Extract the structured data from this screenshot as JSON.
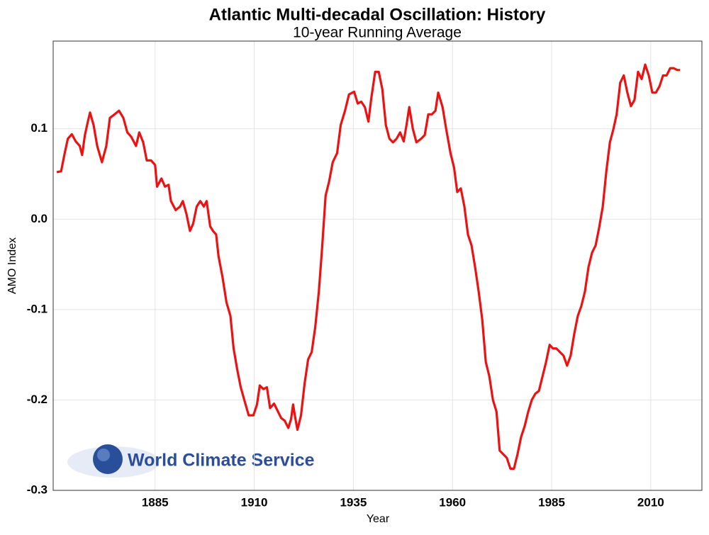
{
  "chart_data": {
    "type": "line",
    "title": "Atlantic Multi-decadal Oscillation: History",
    "subtitle": "10-year Running Average",
    "x_label": "Year",
    "y_label": "AMO Index",
    "logo": "World Climate Service",
    "x": [
      1860.2,
      1861.3,
      1862.3,
      1863,
      1864,
      1865,
      1866,
      1866.6,
      1867.3,
      1868,
      1868.6,
      1869.5,
      1870.4,
      1871.6,
      1872.7,
      1873.6,
      1874.8,
      1875.9,
      1877,
      1878,
      1879,
      1880.2,
      1881,
      1882,
      1882.9,
      1884,
      1885,
      1885.5,
      1886.6,
      1887.5,
      1888.4,
      1889,
      1890.2,
      1891.3,
      1892,
      1892.9,
      1893.8,
      1894.6,
      1895.5,
      1896.4,
      1897.3,
      1898,
      1898.9,
      1899.6,
      1900.4,
      1901,
      1902,
      1903,
      1904,
      1904.8,
      1905.7,
      1906.6,
      1907.5,
      1908.6,
      1909.8,
      1910.7,
      1911.4,
      1912.3,
      1913.2,
      1914,
      1915,
      1915.9,
      1916.8,
      1917.7,
      1918.6,
      1919.3,
      1919.8,
      1920.4,
      1920.9,
      1921.8,
      1922.7,
      1923.6,
      1924.5,
      1925.4,
      1926.3,
      1927.1,
      1928,
      1928.9,
      1929.8,
      1930.9,
      1931.8,
      1932.9,
      1933.9,
      1935.2,
      1936.1,
      1937,
      1937.9,
      1938.8,
      1939.5,
      1940.5,
      1941.4,
      1942.3,
      1943.2,
      1944.1,
      1945,
      1945.9,
      1946.8,
      1947.7,
      1948.4,
      1949.1,
      1950,
      1950.9,
      1952.1,
      1953,
      1953.9,
      1954.8,
      1955.7,
      1956.4,
      1957.5,
      1958.4,
      1959.5,
      1960.4,
      1961.2,
      1962.1,
      1963,
      1963.9,
      1964.8,
      1965.7,
      1966.6,
      1967.5,
      1968.4,
      1969.3,
      1970.2,
      1971.1,
      1971.9,
      1972.8,
      1973.7,
      1974.6,
      1975.5,
      1976.4,
      1977.3,
      1978.2,
      1979.1,
      1980,
      1980.9,
      1981.8,
      1982.7,
      1983.6,
      1984.5,
      1985.3,
      1986.2,
      1987.1,
      1988,
      1988.9,
      1989.8,
      1990.7,
      1991.6,
      1992.5,
      1993.4,
      1994.3,
      1995.2,
      1996.1,
      1997,
      1997.9,
      1998.8,
      1999.7,
      2000.6,
      2001.4,
      2002.3,
      2003.2,
      2004.1,
      2005,
      2005.9,
      2006.8,
      2007.7,
      2008.6,
      2009.5,
      2010.4,
      2011.3,
      2012.2,
      2013.1,
      2014,
      2014.9,
      2015.8,
      2016.7,
      2017.4
    ],
    "series": [
      {
        "name": "AMO Index",
        "color": "#ee1111",
        "values": [
          0.052,
          0.053,
          0.075,
          0.089,
          0.094,
          0.086,
          0.081,
          0.071,
          0.093,
          0.107,
          0.118,
          0.104,
          0.081,
          0.063,
          0.081,
          0.112,
          0.116,
          0.12,
          0.112,
          0.096,
          0.091,
          0.081,
          0.096,
          0.085,
          0.065,
          0.065,
          0.06,
          0.036,
          0.045,
          0.036,
          0.038,
          0.02,
          0.01,
          0.014,
          0.02,
          0.006,
          -0.013,
          -0.005,
          0.014,
          0.02,
          0.014,
          0.02,
          -0.008,
          -0.013,
          -0.017,
          -0.041,
          -0.064,
          -0.092,
          -0.107,
          -0.143,
          -0.166,
          -0.186,
          -0.2,
          -0.217,
          -0.217,
          -0.205,
          -0.184,
          -0.188,
          -0.186,
          -0.209,
          -0.204,
          -0.212,
          -0.22,
          -0.223,
          -0.231,
          -0.221,
          -0.205,
          -0.221,
          -0.233,
          -0.217,
          -0.182,
          -0.155,
          -0.147,
          -0.119,
          -0.08,
          -0.033,
          0.026,
          0.042,
          0.063,
          0.073,
          0.104,
          0.12,
          0.138,
          0.141,
          0.128,
          0.13,
          0.124,
          0.108,
          0.133,
          0.163,
          0.163,
          0.144,
          0.104,
          0.089,
          0.085,
          0.089,
          0.096,
          0.086,
          0.104,
          0.124,
          0.1,
          0.085,
          0.089,
          0.093,
          0.116,
          0.116,
          0.12,
          0.14,
          0.124,
          0.1,
          0.073,
          0.057,
          0.03,
          0.034,
          0.014,
          -0.017,
          -0.029,
          -0.053,
          -0.08,
          -0.111,
          -0.158,
          -0.174,
          -0.2,
          -0.213,
          -0.256,
          -0.26,
          -0.264,
          -0.276,
          -0.276,
          -0.26,
          -0.241,
          -0.229,
          -0.213,
          -0.2,
          -0.193,
          -0.19,
          -0.174,
          -0.158,
          -0.139,
          -0.143,
          -0.143,
          -0.147,
          -0.151,
          -0.162,
          -0.151,
          -0.127,
          -0.107,
          -0.096,
          -0.08,
          -0.053,
          -0.037,
          -0.029,
          -0.009,
          0.014,
          0.053,
          0.085,
          0.1,
          0.116,
          0.151,
          0.159,
          0.14,
          0.125,
          0.132,
          0.163,
          0.155,
          0.171,
          0.159,
          0.14,
          0.14,
          0.147,
          0.159,
          0.159,
          0.167,
          0.167,
          0.165,
          0.165
        ]
      }
    ],
    "xlim": [
      1859.3,
      2022.9
    ],
    "xticks": [
      1885,
      1910,
      1935,
      1960,
      1985,
      2010
    ],
    "ylim": [
      -0.3,
      0.197
    ],
    "yticks": [
      {
        "value": -0.3,
        "label": "-0.3"
      },
      {
        "value": -0.2,
        "label": "-0.2"
      },
      {
        "value": -0.1,
        "label": "-0.1"
      },
      {
        "value": 0,
        "label": "0.0"
      },
      {
        "value": 0.1,
        "label": "0.1"
      }
    ],
    "grid": true
  }
}
